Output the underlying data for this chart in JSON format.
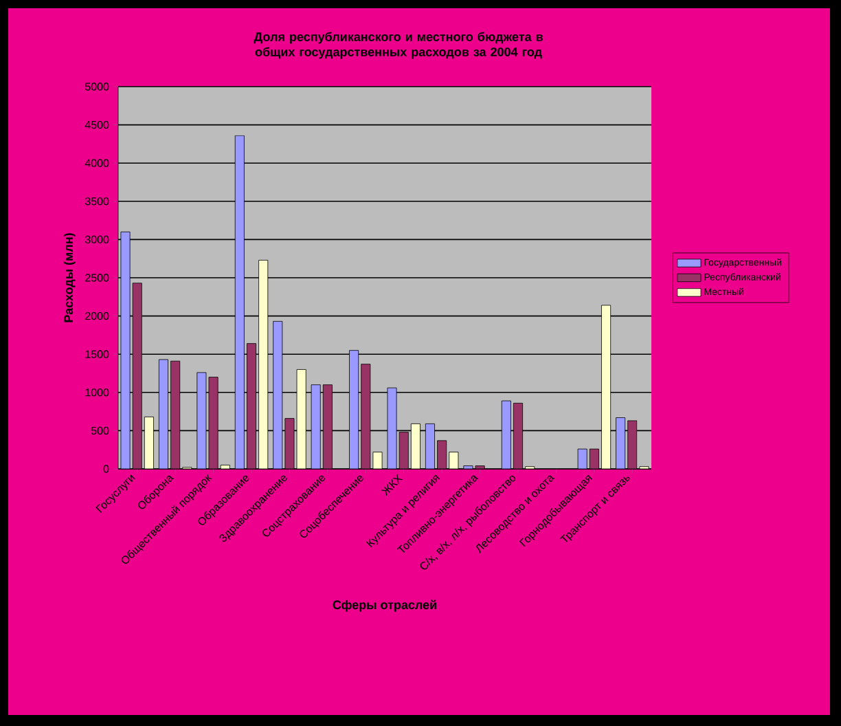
{
  "chart_data": {
    "type": "bar",
    "title": "Доля республиканского и местного бюджета в общих государственных расходов за 2004 год",
    "xlabel": "Сферы отраслей",
    "ylabel": "Расходы (млн)",
    "categories": [
      "Госуслуги",
      "Оборона",
      "Общественный порядок",
      "Образование",
      "Здравоохранение",
      "Соцстрахование",
      "Соцобеспечение",
      "ЖКХ",
      "Культура и религия",
      "Топливно-энергетика",
      "С/х, в/х, л/х, рыболовство",
      "Лесоводство и охота",
      "Горнодобывающая",
      "Транспорт и связь"
    ],
    "series": [
      {
        "name": "Государственный",
        "color": "#9999ff",
        "values": [
          3100,
          1430,
          1260,
          4360,
          1930,
          1100,
          1550,
          1060,
          590,
          40,
          890,
          null,
          260,
          670
        ]
      },
      {
        "name": "Республиканский",
        "color": "#993366",
        "values": [
          2430,
          1410,
          1200,
          1640,
          660,
          1100,
          1370,
          480,
          370,
          40,
          860,
          null,
          260,
          630
        ]
      },
      {
        "name": "Местный",
        "color": "#ffffcc",
        "values": [
          680,
          20,
          50,
          2730,
          1300,
          null,
          220,
          590,
          220,
          null,
          30,
          null,
          2140,
          30
        ]
      }
    ],
    "ylim": [
      0,
      5000
    ],
    "yticks": [
      0,
      500,
      1000,
      1500,
      2000,
      2500,
      3000,
      3500,
      4000,
      4500,
      5000
    ],
    "grid": "y",
    "legend": "right"
  }
}
